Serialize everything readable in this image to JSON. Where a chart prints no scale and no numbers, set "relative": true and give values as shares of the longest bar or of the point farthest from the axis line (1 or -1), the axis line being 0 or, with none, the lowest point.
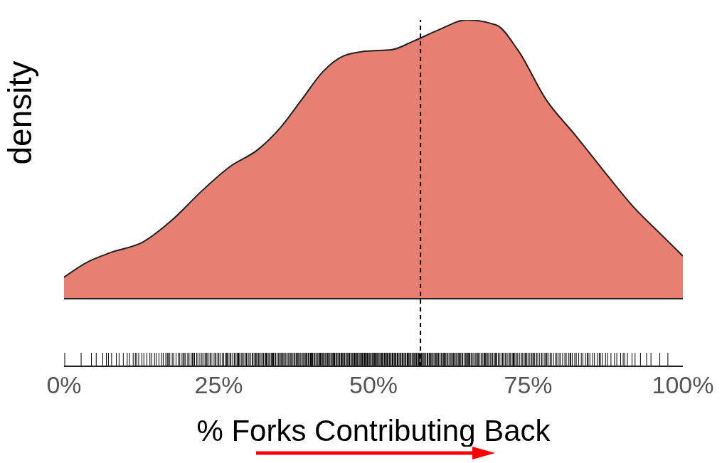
{
  "chart_data": {
    "type": "area",
    "xlabel": "% Forks Contributing Back",
    "ylabel": "density",
    "relative": true,
    "x": [
      0,
      3.5,
      7.6,
      12.8,
      17.4,
      22.1,
      26.7,
      31.4,
      34.9,
      38.4,
      41.9,
      45.3,
      48.8,
      52.9,
      56.4,
      60.5,
      65.1,
      69.8,
      73.3,
      77.9,
      82.6,
      87.2,
      91.9,
      96.5,
      100
    ],
    "values": [
      0.077,
      0.128,
      0.166,
      0.204,
      0.281,
      0.383,
      0.472,
      0.536,
      0.612,
      0.714,
      0.816,
      0.872,
      0.888,
      0.893,
      0.923,
      0.964,
      1.0,
      0.982,
      0.893,
      0.714,
      0.587,
      0.459,
      0.332,
      0.23,
      0.153
    ],
    "color": "#e77f72",
    "xlim": [
      0,
      100
    ],
    "xticks": [
      {
        "value": 0,
        "label": "0%"
      },
      {
        "value": 25,
        "label": "25%"
      },
      {
        "value": 50,
        "label": "50%"
      },
      {
        "value": 75,
        "label": "75%"
      },
      {
        "value": 100,
        "label": "100%"
      }
    ],
    "ref_lines": [
      {
        "axis": "x",
        "value": 57.6,
        "line_style": "dashed",
        "color": "#000000"
      }
    ],
    "grid": false,
    "legend": false
  }
}
